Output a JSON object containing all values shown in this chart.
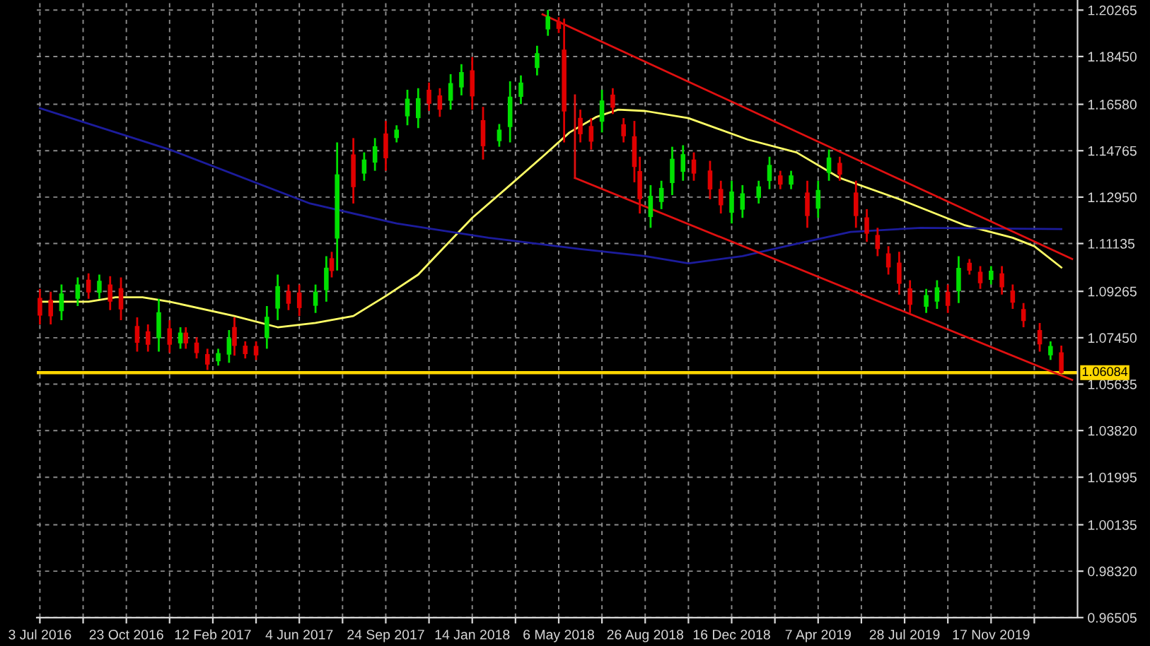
{
  "chart_data": {
    "type": "candlestick",
    "x": [
      "2016-07-03",
      "2016-07-17",
      "2016-07-31",
      "2016-08-21",
      "2016-09-04",
      "2016-09-18",
      "2016-10-02",
      "2016-10-16",
      "2016-11-06",
      "2016-11-20",
      "2016-12-04",
      "2016-12-18",
      "2017-01-01",
      "2017-01-08",
      "2017-01-22",
      "2017-02-05",
      "2017-02-19",
      "2017-03-05",
      "2017-03-12",
      "2017-03-26",
      "2017-04-09",
      "2017-04-23",
      "2017-05-07",
      "2017-05-21",
      "2017-06-04",
      "2017-06-25",
      "2017-07-09",
      "2017-07-16",
      "2017-07-23",
      "2017-08-13",
      "2017-08-27",
      "2017-09-10",
      "2017-09-24",
      "2017-10-08",
      "2017-10-22",
      "2017-11-05",
      "2017-11-19",
      "2017-12-03",
      "2017-12-17",
      "2017-12-31",
      "2018-01-14",
      "2018-01-28",
      "2018-02-18",
      "2018-03-04",
      "2018-03-18",
      "2018-04-08",
      "2018-04-22",
      "2018-05-06",
      "2018-05-13",
      "2018-06-03",
      "2018-06-17",
      "2018-07-01",
      "2018-07-15",
      "2018-07-29",
      "2018-08-12",
      "2018-08-19",
      "2018-09-02",
      "2018-09-16",
      "2018-09-30",
      "2018-10-14",
      "2018-10-28",
      "2018-11-18",
      "2018-12-02",
      "2018-12-16",
      "2018-12-30",
      "2019-01-20",
      "2019-02-03",
      "2019-02-17",
      "2019-03-03",
      "2019-03-24",
      "2019-04-07",
      "2019-04-21",
      "2019-05-05",
      "2019-05-26",
      "2019-06-09",
      "2019-06-23",
      "2019-07-07",
      "2019-07-21",
      "2019-08-04",
      "2019-08-25",
      "2019-09-08",
      "2019-09-22",
      "2019-10-06",
      "2019-10-20",
      "2019-11-03",
      "2019-11-17",
      "2019-12-01",
      "2019-12-15",
      "2019-12-29",
      "2020-01-19",
      "2020-02-02",
      "2020-02-16"
    ],
    "ohlc": [
      [
        1.0901,
        1.0936,
        1.0797,
        1.0832
      ],
      [
        1.0893,
        1.0925,
        1.0797,
        1.0829
      ],
      [
        1.0849,
        1.0953,
        1.0814,
        1.0918
      ],
      [
        1.0897,
        1.0981,
        1.0869,
        1.0953
      ],
      [
        1.0972,
        1.0997,
        1.0897,
        1.0922
      ],
      [
        1.0921,
        1.0992,
        1.0897,
        1.0968
      ],
      [
        1.0953,
        1.0986,
        1.0853,
        1.0886
      ],
      [
        1.0939,
        1.0981,
        1.0814,
        1.0856
      ],
      [
        1.0791,
        1.0825,
        1.0691,
        1.0725
      ],
      [
        1.077,
        1.0797,
        1.0691,
        1.0718
      ],
      [
        1.0743,
        1.0897,
        1.0691,
        1.0845
      ],
      [
        1.0782,
        1.0814,
        1.0686,
        1.0718
      ],
      [
        1.0723,
        1.0786,
        1.0702,
        1.0765
      ],
      [
        1.0765,
        1.0786,
        1.0702,
        1.0723
      ],
      [
        1.0726,
        1.0747,
        1.0664,
        1.0685
      ],
      [
        1.0681,
        1.0702,
        1.0619,
        1.064
      ],
      [
        1.0653,
        1.0702,
        1.0636,
        1.0685
      ],
      [
        1.0679,
        1.0775,
        1.0647,
        1.0743
      ],
      [
        1.0787,
        1.0825,
        1.0675,
        1.0713
      ],
      [
        1.0714,
        1.0731,
        1.0664,
        1.0681
      ],
      [
        1.0713,
        1.0731,
        1.0658,
        1.0676
      ],
      [
        1.0744,
        1.0869,
        1.0702,
        1.0827
      ],
      [
        1.0859,
        1.0992,
        1.0814,
        1.0947
      ],
      [
        1.0928,
        1.0953,
        1.0853,
        1.0878
      ],
      [
        1.0922,
        1.0953,
        1.083,
        1.0861
      ],
      [
        1.087,
        1.0953,
        1.0842,
        1.0925
      ],
      [
        1.0931,
        1.1064,
        1.0886,
        1.1019
      ],
      [
        1.1056,
        1.1081,
        1.0981,
        1.1006
      ],
      [
        1.1133,
        1.1509,
        1.1008,
        1.1384
      ],
      [
        1.1462,
        1.1526,
        1.127,
        1.1334
      ],
      [
        1.1387,
        1.147,
        1.1359,
        1.1442
      ],
      [
        1.143,
        1.1526,
        1.1398,
        1.1494
      ],
      [
        1.1544,
        1.1593,
        1.1398,
        1.1447
      ],
      [
        1.1526,
        1.1576,
        1.1509,
        1.1559
      ],
      [
        1.1611,
        1.1715,
        1.1576,
        1.168
      ],
      [
        1.1604,
        1.1721,
        1.1565,
        1.1682
      ],
      [
        1.1715,
        1.1743,
        1.1632,
        1.166
      ],
      [
        1.1693,
        1.1721,
        1.1609,
        1.1637
      ],
      [
        1.1672,
        1.1776,
        1.1637,
        1.1741
      ],
      [
        1.1724,
        1.1815,
        1.1693,
        1.1784
      ],
      [
        1.1791,
        1.1843,
        1.1637,
        1.1689
      ],
      [
        1.1596,
        1.1648,
        1.1442,
        1.1494
      ],
      [
        1.1514,
        1.1581,
        1.1492,
        1.1559
      ],
      [
        1.1569,
        1.1748,
        1.1509,
        1.1688
      ],
      [
        1.1687,
        1.1771,
        1.1659,
        1.1743
      ],
      [
        1.18,
        1.1887,
        1.1771,
        1.1858
      ],
      [
        1.1951,
        1.2027,
        1.1926,
        1.2002
      ],
      [
        1.1983,
        1.1999,
        1.1937,
        1.1953
      ],
      [
        1.1872,
        1.1993,
        1.1509,
        1.163
      ],
      [
        1.1605,
        1.1637,
        1.1509,
        1.1541
      ],
      [
        1.1573,
        1.1604,
        1.1481,
        1.1512
      ],
      [
        1.159,
        1.1715,
        1.1548,
        1.1673
      ],
      [
        1.1696,
        1.1721,
        1.162,
        1.1645
      ],
      [
        1.158,
        1.1604,
        1.1509,
        1.1533
      ],
      [
        1.1533,
        1.1593,
        1.1353,
        1.1413
      ],
      [
        1.1397,
        1.1453,
        1.1231,
        1.1287
      ],
      [
        1.1217,
        1.1342,
        1.1175,
        1.13
      ],
      [
        1.1276,
        1.1359,
        1.1248,
        1.1331
      ],
      [
        1.135,
        1.1492,
        1.1303,
        1.1445
      ],
      [
        1.1394,
        1.1498,
        1.1359,
        1.1463
      ],
      [
        1.1442,
        1.147,
        1.1359,
        1.1387
      ],
      [
        1.1399,
        1.1437,
        1.1287,
        1.1325
      ],
      [
        1.1327,
        1.1359,
        1.1231,
        1.1263
      ],
      [
        1.1234,
        1.1359,
        1.1192,
        1.1317
      ],
      [
        1.1246,
        1.1342,
        1.1214,
        1.131
      ],
      [
        1.1292,
        1.1359,
        1.127,
        1.1337
      ],
      [
        1.1358,
        1.1453,
        1.1326,
        1.1421
      ],
      [
        1.138,
        1.1398,
        1.1326,
        1.1344
      ],
      [
        1.1344,
        1.1398,
        1.1326,
        1.138
      ],
      [
        1.1313,
        1.1359,
        1.1175,
        1.1221
      ],
      [
        1.125,
        1.1359,
        1.1214,
        1.1323
      ],
      [
        1.139,
        1.1481,
        1.1359,
        1.145
      ],
      [
        1.1429,
        1.1453,
        1.1359,
        1.1383
      ],
      [
        1.1313,
        1.1359,
        1.1175,
        1.1221
      ],
      [
        1.1216,
        1.1248,
        1.112,
        1.1152
      ],
      [
        1.1147,
        1.1175,
        1.1064,
        1.1092
      ],
      [
        1.1075,
        1.1103,
        1.0992,
        1.102
      ],
      [
        1.1039,
        1.1081,
        1.0914,
        1.0956
      ],
      [
        1.0938,
        1.097,
        1.0842,
        1.0874
      ],
      [
        1.0866,
        1.0936,
        1.0842,
        1.0912
      ],
      [
        1.0886,
        1.097,
        1.0858,
        1.0942
      ],
      [
        1.0925,
        1.0953,
        1.0842,
        1.087
      ],
      [
        1.0927,
        1.1064,
        1.0881,
        1.1018
      ],
      [
        1.1038,
        1.1053,
        1.0992,
        1.1007
      ],
      [
        1.1003,
        1.1025,
        1.0936,
        1.0958
      ],
      [
        1.0971,
        1.1025,
        1.0953,
        1.1007
      ],
      [
        1.0997,
        1.1025,
        1.0914,
        1.0942
      ],
      [
        1.0929,
        1.0953,
        1.0858,
        1.0882
      ],
      [
        1.0857,
        1.0881,
        1.0786,
        1.081
      ],
      [
        1.0775,
        1.0803,
        1.0691,
        1.0719
      ],
      [
        1.0676,
        1.0731,
        1.0658,
        1.0713
      ],
      [
        1.0688,
        1.0714,
        1.0605,
        1.0608
      ]
    ],
    "colors": [
      "#e00000",
      "#e00000",
      "#00e000",
      "#00e000",
      "#e00000",
      "#00e000",
      "#e00000",
      "#e00000",
      "#e00000",
      "#e00000",
      "#00e000",
      "#e00000",
      "#00e000",
      "#e00000",
      "#e00000",
      "#e00000",
      "#00e000",
      "#00e000",
      "#e00000",
      "#e00000",
      "#e00000",
      "#00e000",
      "#00e000",
      "#e00000",
      "#e00000",
      "#00e000",
      "#00e000",
      "#e00000",
      "#00e000",
      "#e00000",
      "#00e000",
      "#00e000",
      "#e00000",
      "#00e000",
      "#00e000",
      "#00e000",
      "#e00000",
      "#e00000",
      "#00e000",
      "#00e000",
      "#e00000",
      "#e00000",
      "#00e000",
      "#00e000",
      "#00e000",
      "#00e000",
      "#00e000",
      "#e00000",
      "#e00000",
      "#e00000",
      "#e00000",
      "#00e000",
      "#e00000",
      "#e00000",
      "#e00000",
      "#e00000",
      "#00e000",
      "#00e000",
      "#00e000",
      "#00e000",
      "#e00000",
      "#e00000",
      "#e00000",
      "#00e000",
      "#00e000",
      "#00e000",
      "#00e000",
      "#e00000",
      "#00e000",
      "#e00000",
      "#00e000",
      "#00e000",
      "#e00000",
      "#e00000",
      "#e00000",
      "#e00000",
      "#e00000",
      "#e00000",
      "#e00000",
      "#00e000",
      "#00e000",
      "#e00000",
      "#00e000",
      "#e00000",
      "#e00000",
      "#00e000",
      "#e00000",
      "#e00000",
      "#e00000",
      "#e00000",
      "#00e000",
      "#e00000"
    ],
    "series": [
      {
        "type": "line",
        "color": "#ffff66",
        "x": [
          "2016-07-03",
          "2016-09-04",
          "2016-10-09",
          "2016-11-13",
          "2016-12-18",
          "2017-03-12",
          "2017-05-07",
          "2017-06-25",
          "2017-08-13",
          "2017-09-24",
          "2017-11-05",
          "2017-12-03",
          "2018-01-14",
          "2018-03-04",
          "2018-04-15",
          "2018-05-20",
          "2018-06-24",
          "2018-07-22",
          "2018-08-26",
          "2018-10-21",
          "2019-01-06",
          "2019-03-10",
          "2019-05-05",
          "2019-07-21",
          "2019-10-13",
          "2019-12-15",
          "2020-01-12",
          "2020-02-16"
        ],
        "values": [
          1.0886,
          1.0886,
          1.0903,
          1.0903,
          1.0886,
          1.083,
          1.0786,
          1.0803,
          1.083,
          1.0908,
          1.0992,
          1.1081,
          1.1214,
          1.1342,
          1.1453,
          1.1548,
          1.1609,
          1.1637,
          1.1632,
          1.1604,
          1.152,
          1.147,
          1.137,
          1.1287,
          1.1186,
          1.1136,
          1.1103,
          1.102
        ]
      },
      {
        "type": "line",
        "color": "#1c1c9c",
        "x": [
          "2016-07-03",
          "2016-12-18",
          "2017-06-18",
          "2017-10-08",
          "2018-02-04",
          "2018-06-03",
          "2018-08-26",
          "2018-10-21",
          "2018-12-30",
          "2019-02-24",
          "2019-05-19",
          "2019-08-18",
          "2020-02-16"
        ],
        "values": [
          1.1643,
          1.1481,
          1.127,
          1.1192,
          1.1136,
          1.1092,
          1.1064,
          1.1036,
          1.1064,
          1.1103,
          1.1159,
          1.1175,
          1.117
        ]
      },
      {
        "type": "line",
        "color": "#e01010",
        "x": [
          "2018-04-15",
          "2020-03-01"
        ],
        "values": [
          1.201,
          1.1053
        ]
      },
      {
        "type": "line",
        "color": "#e01010",
        "x": [
          "2018-05-27",
          "2020-03-01"
        ],
        "values": [
          1.137,
          1.058
        ]
      },
      {
        "type": "line",
        "color": "#e01010",
        "x": [
          "2018-05-27",
          "2018-05-27"
        ],
        "values": [
          1.1693,
          1.137
        ]
      }
    ],
    "ref_lines": [
      {
        "axis": "y",
        "value": 1.06084,
        "label": "1.06084",
        "color": "#ffd700"
      }
    ],
    "xlim": [
      "2016-06-29",
      "2020-03-08"
    ],
    "ylim": [
      0.96505,
      1.2066
    ],
    "xticks": [
      {
        "value": "2016-07-03",
        "label": "3 Jul 2016"
      },
      {
        "value": "2016-08-28",
        "label": null
      },
      {
        "value": "2016-10-23",
        "label": "23 Oct 2016"
      },
      {
        "value": "2016-12-18",
        "label": null
      },
      {
        "value": "2017-02-12",
        "label": "12 Feb 2017"
      },
      {
        "value": "2017-04-09",
        "label": null
      },
      {
        "value": "2017-06-04",
        "label": "4 Jun 2017"
      },
      {
        "value": "2017-07-30",
        "label": null
      },
      {
        "value": "2017-09-24",
        "label": "24 Sep 2017"
      },
      {
        "value": "2017-11-19",
        "label": null
      },
      {
        "value": "2018-01-14",
        "label": "14 Jan 2018"
      },
      {
        "value": "2018-03-11",
        "label": null
      },
      {
        "value": "2018-05-06",
        "label": "6 May 2018"
      },
      {
        "value": "2018-07-01",
        "label": null
      },
      {
        "value": "2018-08-26",
        "label": "26 Aug 2018"
      },
      {
        "value": "2018-10-21",
        "label": null
      },
      {
        "value": "2018-12-16",
        "label": "16 Dec 2018"
      },
      {
        "value": "2019-02-10",
        "label": null
      },
      {
        "value": "2019-04-07",
        "label": "7 Apr 2019"
      },
      {
        "value": "2019-06-02",
        "label": null
      },
      {
        "value": "2019-07-28",
        "label": "28 Jul 2019"
      },
      {
        "value": "2019-09-22",
        "label": null
      },
      {
        "value": "2019-11-17",
        "label": "17 Nov 2019"
      },
      {
        "value": "2020-01-12",
        "label": null
      }
    ],
    "yticks": [
      1.20265,
      {
        "value": 1.1845,
        "label": "1.18450"
      },
      {
        "value": 1.1658,
        "label": "1.16580"
      },
      1.14765,
      {
        "value": 1.1295,
        "label": "1.12950"
      },
      1.11135,
      1.09265,
      {
        "value": 1.0745,
        "label": "1.07450"
      },
      1.05635,
      {
        "value": 1.0382,
        "label": "1.03820"
      },
      1.01995,
      1.00135,
      {
        "value": 0.9832,
        "label": "0.98320"
      },
      0.96505
    ],
    "grid": true
  }
}
